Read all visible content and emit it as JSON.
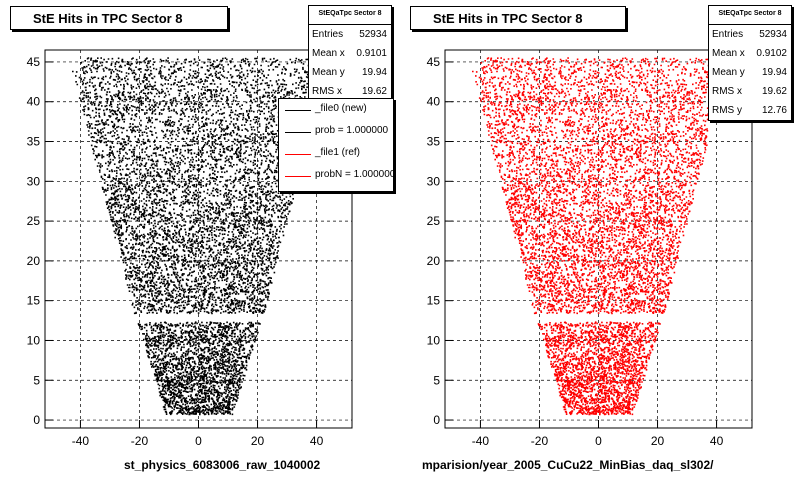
{
  "chart_data": [
    {
      "type": "scatter",
      "title": "StE Hits in TPC Sector 8",
      "xlabel": "st_physics_6083006_raw_1040002",
      "ylabel": "",
      "xlim": [
        -52,
        52
      ],
      "ylim": [
        -1,
        46.5
      ],
      "x_ticks": [
        -40,
        -20,
        0,
        20,
        40
      ],
      "y_ticks": [
        0,
        5,
        10,
        15,
        20,
        25,
        30,
        35,
        40,
        45
      ],
      "grid": true,
      "marker_color": "#000000",
      "stats": {
        "name": "StEQaTpc Sector 8",
        "entries_label": "Entries",
        "entries": "52934",
        "mean_x_label": "Mean x",
        "mean_x": "0.9101",
        "mean_y_label": "Mean y",
        "mean_y": "19.94",
        "rms_x_label": "RMS x",
        "rms_x": "19.62"
      },
      "legend": [
        {
          "label": "_file0 (new)",
          "color": "#000000"
        },
        {
          "label": "prob = 1.000000",
          "color": "#000000"
        },
        {
          "label": "_file1 (ref)",
          "color": "#ff0000"
        },
        {
          "label": "probN = 1.000000",
          "color": "#ff0000"
        }
      ]
    },
    {
      "type": "scatter",
      "title": "StE Hits in TPC Sector 8",
      "xlabel": "mparision/year_2005_CuCu22_MinBias_daq_sl302/",
      "ylabel": "",
      "xlim": [
        -52,
        52
      ],
      "ylim": [
        -1,
        46.5
      ],
      "x_ticks": [
        -40,
        -20,
        0,
        20,
        40
      ],
      "y_ticks": [
        0,
        5,
        10,
        15,
        20,
        25,
        30,
        35,
        40,
        45
      ],
      "grid": true,
      "marker_color": "#ff0000",
      "stats": {
        "name": "StEQaTpc Sector 8",
        "entries_label": "Entries",
        "entries": "52934",
        "mean_x_label": "Mean x",
        "mean_x": "0.9102",
        "mean_y_label": "Mean y",
        "mean_y": "19.94",
        "rms_x_label": "RMS x",
        "rms_x": "19.62",
        "rms_y_label": "RMS y",
        "rms_y": "12.76"
      }
    }
  ]
}
